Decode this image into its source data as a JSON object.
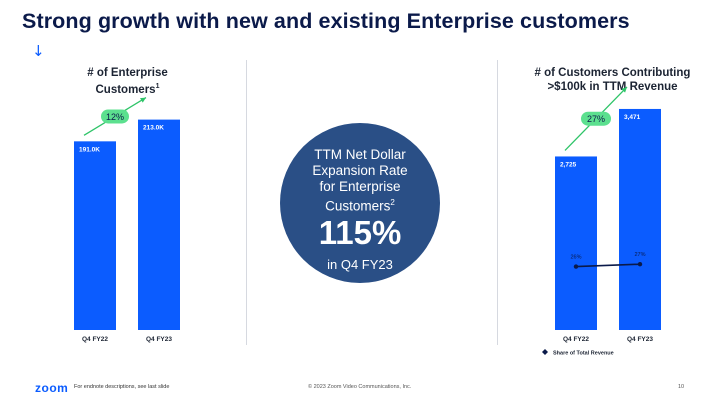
{
  "slide": {
    "title": "Strong growth with new and existing Enterprise customers",
    "arrow_glyph": "↓"
  },
  "left_panel": {
    "title_line1": "# of Enterprise",
    "title_line2": "Customers",
    "title_sup": "1"
  },
  "center_panel": {
    "line1": "TTM Net Dollar",
    "line2": "Expansion Rate",
    "line3": "for Enterprise",
    "line4": "Customers",
    "sup": "2",
    "value": "115%",
    "period": "in Q4 FY23"
  },
  "right_panel": {
    "title_line1": "# of Customers Contributing",
    "title_line2": ">$100k in TTM Revenue"
  },
  "chart_data": [
    {
      "type": "bar",
      "title": "# of Enterprise Customers",
      "categories": [
        "Q4 FY22",
        "Q4 FY23"
      ],
      "values": [
        191.0,
        213.0
      ],
      "value_labels": [
        "191.0K",
        "213.0K"
      ],
      "units": "K",
      "growth_label": "12%",
      "ylim": [
        0,
        245
      ]
    },
    {
      "type": "bar",
      "title": "# of Customers Contributing >$100k in TTM Revenue",
      "categories": [
        "Q4 FY22",
        "Q4 FY23"
      ],
      "values": [
        2725,
        3471
      ],
      "value_labels": [
        "2,725",
        "3,471"
      ],
      "growth_label": "27%",
      "ylim": [
        0,
        3800
      ],
      "secondary_series": {
        "name": "Share of Total Revenue",
        "values": [
          26,
          27
        ],
        "value_labels": [
          "26%",
          "27%"
        ],
        "units": "%",
        "ylim": [
          0,
          100
        ]
      }
    }
  ],
  "colors": {
    "title": "#0b1a4a",
    "bar": "#0b5cff",
    "circle": "#2a4f86",
    "growth_pill": "#5ce08f",
    "growth_arrow": "#2ec468",
    "share_line": "#0b1a4a"
  },
  "footer": {
    "logo": "zoom",
    "note": "For endnote descriptions, see last slide",
    "copyright": "© 2023 Zoom Video Communications, Inc.",
    "page": "10"
  }
}
